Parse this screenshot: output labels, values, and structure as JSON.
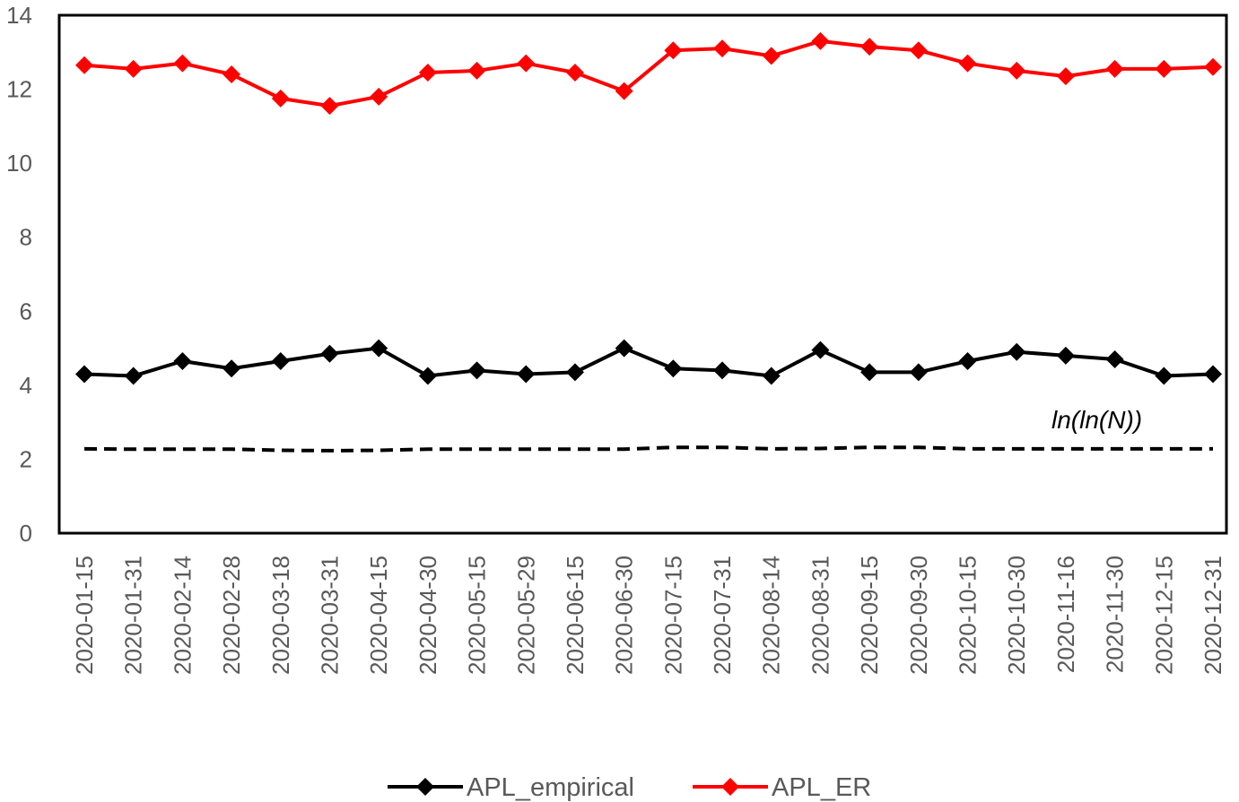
{
  "chart_data": {
    "type": "line",
    "title": "",
    "xlabel": "",
    "ylabel": "",
    "ylim": [
      0,
      14
    ],
    "yticks": [
      "0",
      "2",
      "4",
      "6",
      "8",
      "10",
      "12",
      "14"
    ],
    "grid": false,
    "legend": "bottom",
    "categories": [
      "2020-01-15",
      "2020-01-31",
      "2020-02-14",
      "2020-02-28",
      "2020-03-18",
      "2020-03-31",
      "2020-04-15",
      "2020-04-30",
      "2020-05-15",
      "2020-05-29",
      "2020-06-15",
      "2020-06-30",
      "2020-07-15",
      "2020-07-31",
      "2020-08-14",
      "2020-08-31",
      "2020-09-15",
      "2020-09-30",
      "2020-10-15",
      "2020-10-30",
      "2020-11-16",
      "2020-11-30",
      "2020-12-15",
      "2020-12-31"
    ],
    "series": [
      {
        "name": "APL_empirical",
        "color": "#000000",
        "marker": "diamond",
        "values": [
          4.3,
          4.25,
          4.65,
          4.45,
          4.65,
          4.85,
          5.0,
          4.25,
          4.4,
          4.3,
          4.35,
          5.0,
          4.45,
          4.4,
          4.25,
          4.95,
          4.35,
          4.35,
          4.65,
          4.9,
          4.8,
          4.7,
          4.25,
          4.3
        ]
      },
      {
        "name": "APL_ER",
        "color": "#ff0000",
        "marker": "diamond",
        "values": [
          12.65,
          12.55,
          12.7,
          12.4,
          11.75,
          11.55,
          11.8,
          12.45,
          12.5,
          12.7,
          12.45,
          11.95,
          13.05,
          13.1,
          12.9,
          13.3,
          13.15,
          13.05,
          12.7,
          12.5,
          12.35,
          12.55,
          12.55,
          12.6
        ]
      }
    ],
    "reference_line": {
      "label": "ln(ln(N))",
      "style": "dashed",
      "color": "#000000",
      "values": [
        2.28,
        2.27,
        2.27,
        2.27,
        2.24,
        2.23,
        2.24,
        2.27,
        2.27,
        2.27,
        2.27,
        2.27,
        2.32,
        2.32,
        2.28,
        2.29,
        2.32,
        2.32,
        2.28,
        2.28,
        2.28,
        2.28,
        2.28,
        2.28
      ]
    }
  }
}
